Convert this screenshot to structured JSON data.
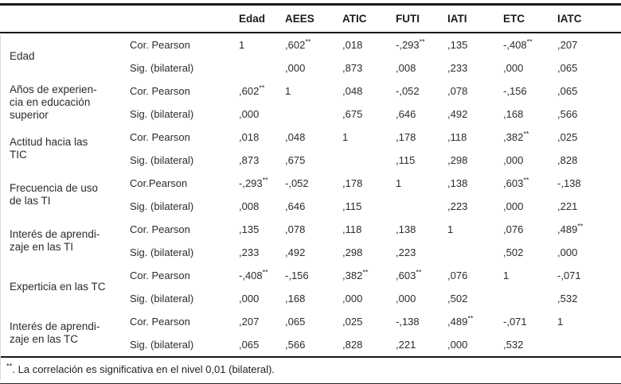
{
  "table": {
    "columns": [
      "Edad",
      "AEES",
      "ATIC",
      "FUTI",
      "IATI",
      "ETC",
      "IATC"
    ],
    "groups": [
      {
        "label": "Edad",
        "rows": [
          {
            "stat": "Cor. Pearson",
            "values": [
              "1",
              ",602**",
              ",018",
              "-,293**",
              ",135",
              "-,408**",
              ",207"
            ]
          },
          {
            "stat": "Sig. (bilateral)",
            "values": [
              "",
              ",000",
              ",873",
              ",008",
              ",233",
              ",000",
              ",065"
            ]
          }
        ]
      },
      {
        "label": "Años de experien-\ncia en educación\nsuperior",
        "rows": [
          {
            "stat": "Cor. Pearson",
            "values": [
              ",602**",
              "1",
              ",048",
              "-,052",
              ",078",
              "-,156",
              ",065"
            ]
          },
          {
            "stat": "Sig. (bilateral)",
            "values": [
              ",000",
              "",
              ",675",
              ",646",
              ",492",
              ",168",
              ",566"
            ]
          }
        ]
      },
      {
        "label": "Actitud hacia las\nTIC",
        "rows": [
          {
            "stat": "Cor. Pearson",
            "values": [
              ",018",
              ",048",
              "1",
              ",178",
              ",118",
              ",382**",
              ",025"
            ]
          },
          {
            "stat": "Sig. (bilateral)",
            "values": [
              ",873",
              ",675",
              "",
              ",115",
              ",298",
              ",000",
              ",828"
            ]
          }
        ]
      },
      {
        "label": "Frecuencia de uso\nde las TI",
        "rows": [
          {
            "stat": "Cor.Pearson",
            "values": [
              "-,293**",
              "-,052",
              ",178",
              "1",
              ",138",
              ",603**",
              "-,138"
            ]
          },
          {
            "stat": "Sig. (bilateral)",
            "values": [
              ",008",
              ",646",
              ",115",
              "",
              ",223",
              ",000",
              ",221"
            ]
          }
        ]
      },
      {
        "label": "Interés de aprendi-\nzaje en las TI",
        "rows": [
          {
            "stat": "Cor. Pearson",
            "values": [
              ",135",
              ",078",
              ",118",
              ",138",
              "1",
              ",076",
              ",489**"
            ]
          },
          {
            "stat": "Sig. (bilateral)",
            "values": [
              ",233",
              ",492",
              ",298",
              ",223",
              "",
              ",502",
              ",000"
            ]
          }
        ]
      },
      {
        "label": "Experticia en las TC",
        "rows": [
          {
            "stat": "Cor. Pearson",
            "values": [
              "-,408**",
              "-,156",
              ",382**",
              ",603**",
              ",076",
              "1",
              "-,071"
            ]
          },
          {
            "stat": "Sig. (bilateral)",
            "values": [
              ",000",
              ",168",
              ",000",
              ",000",
              ",502",
              "",
              ",532"
            ]
          }
        ]
      },
      {
        "label": "Interés de aprendi-\nzaje en las TC",
        "rows": [
          {
            "stat": "Cor. Pearson",
            "values": [
              ",207",
              ",065",
              ",025",
              "-,138",
              ",489**",
              "-,071",
              "1"
            ]
          },
          {
            "stat": "Sig. (bilateral)",
            "values": [
              ",065",
              ",566",
              ",828",
              ",221",
              ",000",
              ",532",
              ""
            ]
          }
        ]
      }
    ],
    "footnote_marker": "**",
    "footnote_text": ". La correlación es significativa en el nivel 0,01 (bilateral)."
  },
  "colors": {
    "rule": "#181818",
    "text": "#2b2b2b",
    "bottom_edge": "#c6cad0"
  }
}
